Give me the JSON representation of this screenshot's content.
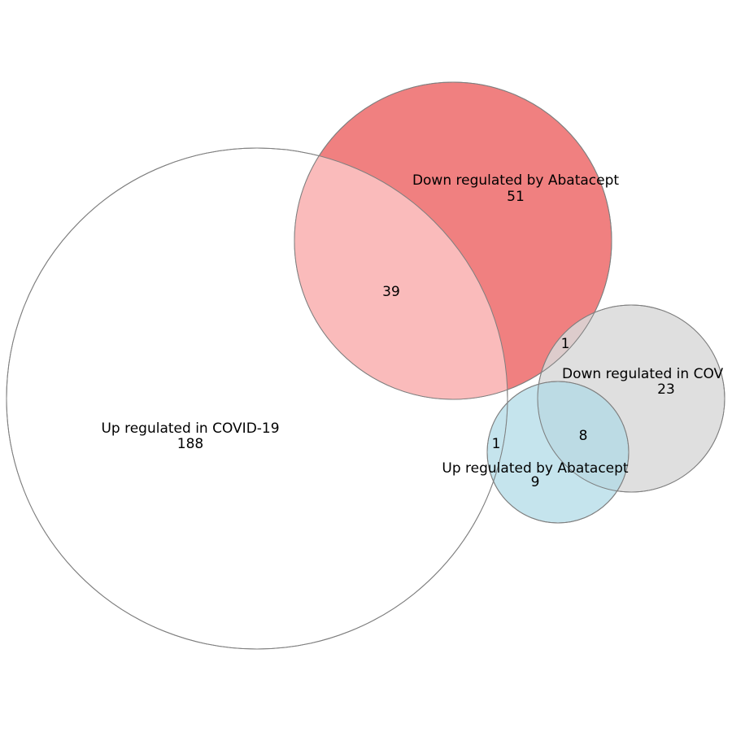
{
  "diagram_type": "euler",
  "colors": {
    "up_covid": "#ffffff",
    "down_abatacept": "#f08080",
    "down_covid": "#d9d9d9",
    "up_abatacept": "#add8e6",
    "overlap_up_covid_down_abatacept": "#fabbbb",
    "stroke": "#7f7f7f"
  },
  "sets": [
    {
      "name": "Up regulated in COVID-19",
      "count": "188"
    },
    {
      "name": "Down regulated by Abatacept",
      "count": "51"
    },
    {
      "name": "Down regulated in COV",
      "count": "23"
    },
    {
      "name": "Up regulated by Abatacept",
      "count": "9"
    }
  ],
  "intersections": [
    {
      "sets": [
        "Up regulated in COVID-19",
        "Down regulated by Abatacept"
      ],
      "count": "39"
    },
    {
      "sets": [
        "Down regulated by Abatacept",
        "Down regulated in COV"
      ],
      "count": "1"
    },
    {
      "sets": [
        "Down regulated in COV",
        "Up regulated by Abatacept"
      ],
      "count": "8"
    },
    {
      "sets": [
        "Up regulated in COVID-19",
        "Up regulated by Abatacept"
      ],
      "count": "1"
    }
  ]
}
